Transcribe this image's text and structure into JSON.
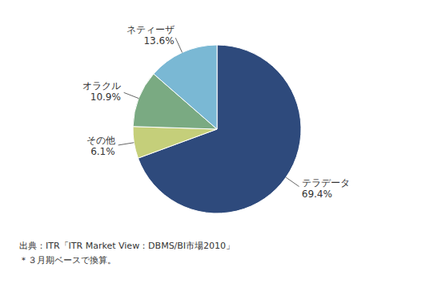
{
  "chart_data": {
    "type": "pie",
    "categories": [
      "テラデータ",
      "その他",
      "オラクル",
      "ネティーザ"
    ],
    "values": [
      69.4,
      6.1,
      10.9,
      13.6
    ],
    "value_labels": [
      "69.4%",
      "6.1%",
      "10.9%",
      "13.6%"
    ],
    "colors": [
      "#2e4a7c",
      "#c5cf7a",
      "#7aaa82",
      "#7ab8d4"
    ],
    "data_labels": true,
    "annotations": [
      "出典：ITR「ITR Market View：DBMS/BI市場2010」",
      "＊３月期ベースで換算。"
    ]
  }
}
